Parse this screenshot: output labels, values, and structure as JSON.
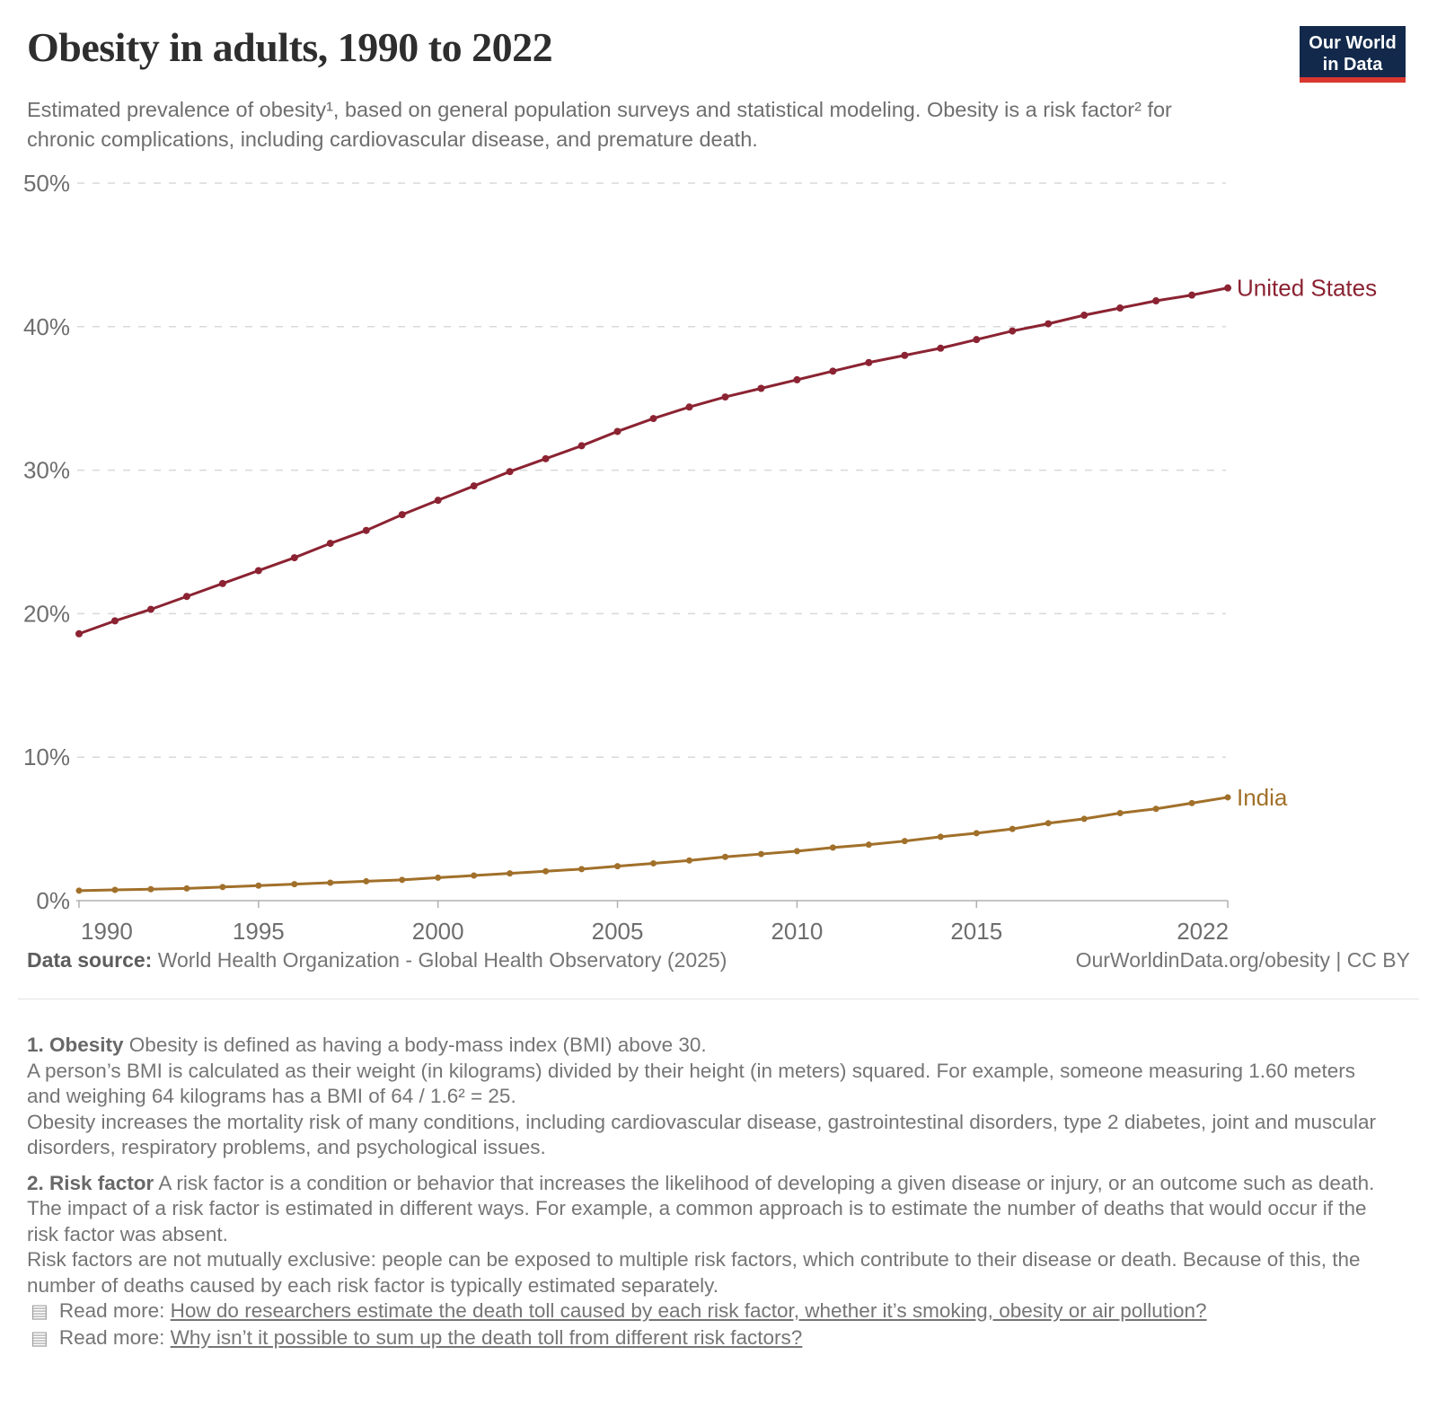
{
  "header": {
    "title": "Obesity in adults, 1990 to 2022",
    "subtitle": "Estimated prevalence of obesity¹, based on general population surveys and statistical modeling. Obesity is a risk factor² for chronic complications, including cardiovascular disease, and premature death."
  },
  "logo": {
    "line1": "Our World",
    "line2": "in Data"
  },
  "chart_data": {
    "type": "line",
    "title": "Obesity in adults, 1990 to 2022",
    "xlabel": "",
    "ylabel": "",
    "x_range": [
      1990,
      2022
    ],
    "ylim": [
      0,
      50
    ],
    "ytick_format": "%",
    "yticks": [
      0,
      10,
      20,
      30,
      40,
      50
    ],
    "xticks": [
      1990,
      1995,
      2000,
      2005,
      2010,
      2015,
      2022
    ],
    "grid": "dashed-horizontal",
    "legend_position": "end-of-line-labels",
    "years": [
      1990,
      1991,
      1992,
      1993,
      1994,
      1995,
      1996,
      1997,
      1998,
      1999,
      2000,
      2001,
      2002,
      2003,
      2004,
      2005,
      2006,
      2007,
      2008,
      2009,
      2010,
      2011,
      2012,
      2013,
      2014,
      2015,
      2016,
      2017,
      2018,
      2019,
      2020,
      2021,
      2022
    ],
    "series": [
      {
        "name": "United States",
        "color": "#8B2332",
        "values": [
          18.6,
          19.5,
          20.3,
          21.2,
          22.1,
          23.0,
          23.9,
          24.9,
          25.8,
          26.9,
          27.9,
          28.9,
          29.9,
          30.8,
          31.7,
          32.7,
          33.6,
          34.4,
          35.1,
          35.7,
          36.3,
          36.9,
          37.5,
          38.0,
          38.5,
          39.1,
          39.7,
          40.2,
          40.8,
          41.3,
          41.8,
          42.2,
          42.7
        ]
      },
      {
        "name": "India",
        "color": "#A1702A",
        "values": [
          0.7,
          0.75,
          0.8,
          0.85,
          0.95,
          1.05,
          1.15,
          1.25,
          1.35,
          1.45,
          1.6,
          1.75,
          1.9,
          2.05,
          2.2,
          2.4,
          2.6,
          2.8,
          3.05,
          3.25,
          3.45,
          3.7,
          3.9,
          4.15,
          4.45,
          4.7,
          5.0,
          5.4,
          5.7,
          6.1,
          6.4,
          6.8,
          7.2
        ]
      }
    ]
  },
  "footer": {
    "source_label": "Data source:",
    "source_text": " World Health Organization - Global Health Observatory (2025)",
    "attribution": "OurWorldinData.org/obesity | CC BY"
  },
  "notes": [
    {
      "label": "1. Obesity",
      "lead": " Obesity is defined as having a body-mass index (BMI) above 30.",
      "body": [
        "A person’s BMI is calculated as their weight (in kilograms) divided by their height (in meters) squared. For example, someone measuring 1.60 meters and weighing 64 kilograms has a BMI of 64 / 1.6² = 25.",
        "Obesity increases the mortality risk of many conditions, including cardiovascular disease, gastrointestinal disorders, type 2 diabetes, joint and muscular disorders, respiratory problems, and psychological issues."
      ]
    },
    {
      "label": "2. Risk factor",
      "lead": " A risk factor is a condition or behavior that increases the likelihood of developing a given disease or injury, or an outcome such as death.",
      "body": [
        "The impact of a risk factor is estimated in different ways. For example, a common approach is to estimate the number of deaths that would occur if the risk factor was absent.",
        "Risk factors are not mutually exclusive: people can be exposed to multiple risk factors, which contribute to their disease or death. Because of this, the number of deaths caused by each risk factor is typically estimated separately."
      ],
      "links": [
        {
          "prefix": "Read more: ",
          "text": "How do researchers estimate the death toll caused by each risk factor, whether it’s smoking, obesity or air pollution?"
        },
        {
          "prefix": "Read more: ",
          "text": "Why isn’t it possible to sum up the death toll from different risk factors?"
        }
      ]
    }
  ]
}
